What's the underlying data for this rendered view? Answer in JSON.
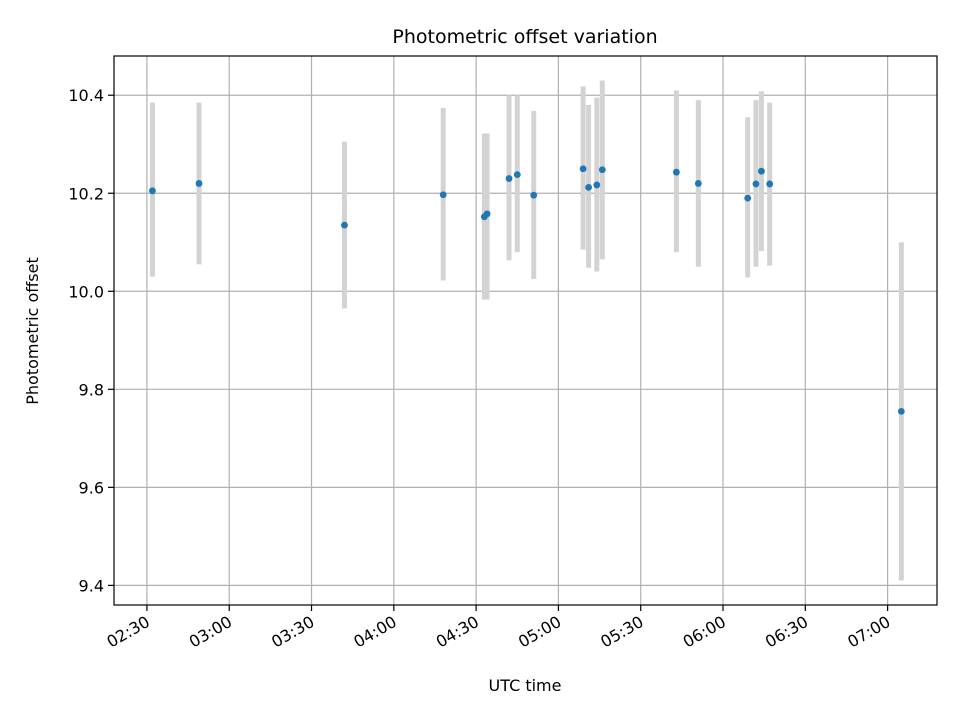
{
  "chart_data": {
    "type": "scatter",
    "title": "Photometric offset variation",
    "xlabel": "UTC time",
    "ylabel": "Photometric offset",
    "x_ticks": [
      "02:30",
      "03:00",
      "03:30",
      "04:00",
      "04:30",
      "05:00",
      "05:30",
      "06:00",
      "06:30",
      "07:00"
    ],
    "x_tick_values": [
      "02:30",
      "03:00",
      "03:30",
      "04:00",
      "04:30",
      "05:00",
      "05:30",
      "06:00",
      "06:30",
      "07:00"
    ],
    "xlim": [
      "02:18",
      "07:18"
    ],
    "y_ticks": [
      "9.4",
      "9.6",
      "9.8",
      "10.0",
      "10.2",
      "10.4"
    ],
    "y_tick_values": [
      9.4,
      9.6,
      9.8,
      10.0,
      10.2,
      10.4
    ],
    "ylim": [
      9.36,
      10.48
    ],
    "grid": true,
    "colors": {
      "point": "#1f77b4",
      "errorbar": "#d3d3d3",
      "grid": "#b0b0b0"
    },
    "points": [
      {
        "x": "02:32",
        "y": 10.205,
        "ylow": 10.03,
        "yhigh": 10.385
      },
      {
        "x": "02:49",
        "y": 10.22,
        "ylow": 10.055,
        "yhigh": 10.385
      },
      {
        "x": "03:42",
        "y": 10.135,
        "ylow": 9.965,
        "yhigh": 10.305
      },
      {
        "x": "04:18",
        "y": 10.197,
        "ylow": 10.022,
        "yhigh": 10.374
      },
      {
        "x": "04:33",
        "y": 10.152,
        "ylow": 9.983,
        "yhigh": 10.322
      },
      {
        "x": "04:34",
        "y": 10.158,
        "ylow": 9.983,
        "yhigh": 10.322
      },
      {
        "x": "04:42",
        "y": 10.23,
        "ylow": 10.063,
        "yhigh": 10.4
      },
      {
        "x": "04:45",
        "y": 10.238,
        "ylow": 10.08,
        "yhigh": 10.4
      },
      {
        "x": "04:51",
        "y": 10.196,
        "ylow": 10.025,
        "yhigh": 10.368
      },
      {
        "x": "05:09",
        "y": 10.25,
        "ylow": 10.085,
        "yhigh": 10.418
      },
      {
        "x": "05:11",
        "y": 10.212,
        "ylow": 10.048,
        "yhigh": 10.38
      },
      {
        "x": "05:14",
        "y": 10.217,
        "ylow": 10.04,
        "yhigh": 10.395
      },
      {
        "x": "05:16",
        "y": 10.248,
        "ylow": 10.065,
        "yhigh": 10.43
      },
      {
        "x": "05:43",
        "y": 10.243,
        "ylow": 10.08,
        "yhigh": 10.41
      },
      {
        "x": "05:51",
        "y": 10.22,
        "ylow": 10.05,
        "yhigh": 10.39
      },
      {
        "x": "06:09",
        "y": 10.19,
        "ylow": 10.028,
        "yhigh": 10.355
      },
      {
        "x": "06:12",
        "y": 10.219,
        "ylow": 10.05,
        "yhigh": 10.39
      },
      {
        "x": "06:14",
        "y": 10.245,
        "ylow": 10.082,
        "yhigh": 10.408
      },
      {
        "x": "06:17",
        "y": 10.219,
        "ylow": 10.052,
        "yhigh": 10.385
      },
      {
        "x": "07:05",
        "y": 9.755,
        "ylow": 9.41,
        "yhigh": 10.1
      }
    ]
  }
}
